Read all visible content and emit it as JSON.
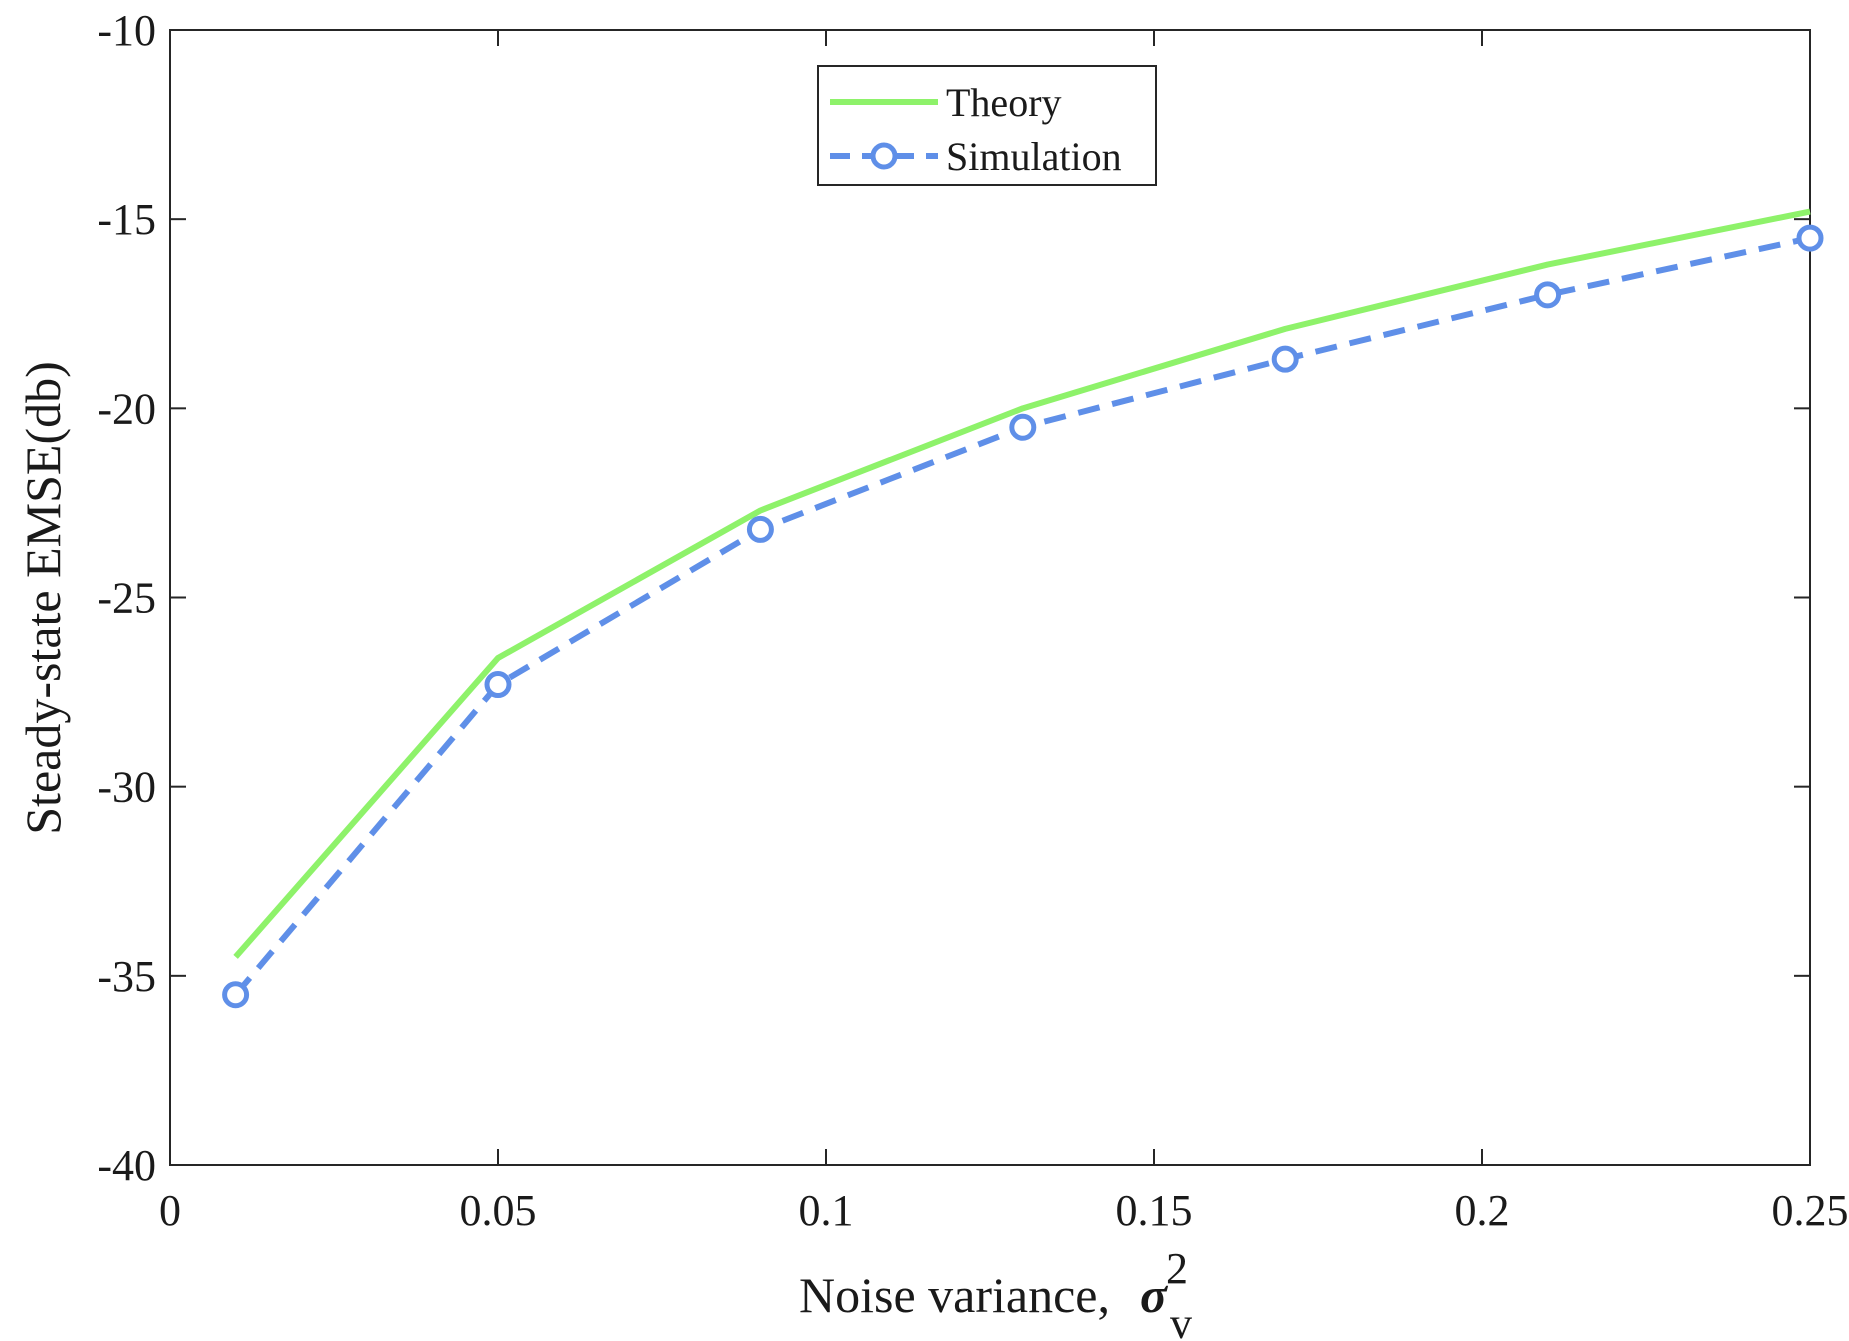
{
  "chart_data": {
    "type": "line",
    "title": "",
    "xlabel": "Noise variance,",
    "xlabel_symbol": "σ",
    "xlabel_superscript": "2",
    "xlabel_subscript": "v",
    "ylabel": "Steady-state EMSE(db)",
    "xlim": [
      0,
      0.25
    ],
    "ylim": [
      -40,
      -10
    ],
    "x_ticks": [
      0,
      0.05,
      0.1,
      0.15,
      0.2,
      0.25
    ],
    "x_tick_labels": [
      "0",
      "0.05",
      "0.1",
      "0.15",
      "0.2",
      "0.25"
    ],
    "y_ticks": [
      -40,
      -35,
      -30,
      -25,
      -20,
      -15,
      -10
    ],
    "y_tick_labels": [
      "-40",
      "-35",
      "-30",
      "-25",
      "-20",
      "-15",
      "-10"
    ],
    "grid": false,
    "legend_position": "top-center",
    "x": [
      0.01,
      0.05,
      0.09,
      0.13,
      0.17,
      0.21,
      0.25
    ],
    "series": [
      {
        "name": "Theory",
        "color": "#8ef26a",
        "style": "solid",
        "marker": "none",
        "values": [
          -34.5,
          -26.6,
          -22.7,
          -20.0,
          -17.9,
          -16.2,
          -14.8
        ]
      },
      {
        "name": "Simulation",
        "color": "#5f8fe8",
        "style": "dashed",
        "marker": "circle",
        "values": [
          -35.5,
          -27.3,
          -23.2,
          -20.5,
          -18.7,
          -17.0,
          -15.5
        ]
      }
    ]
  }
}
